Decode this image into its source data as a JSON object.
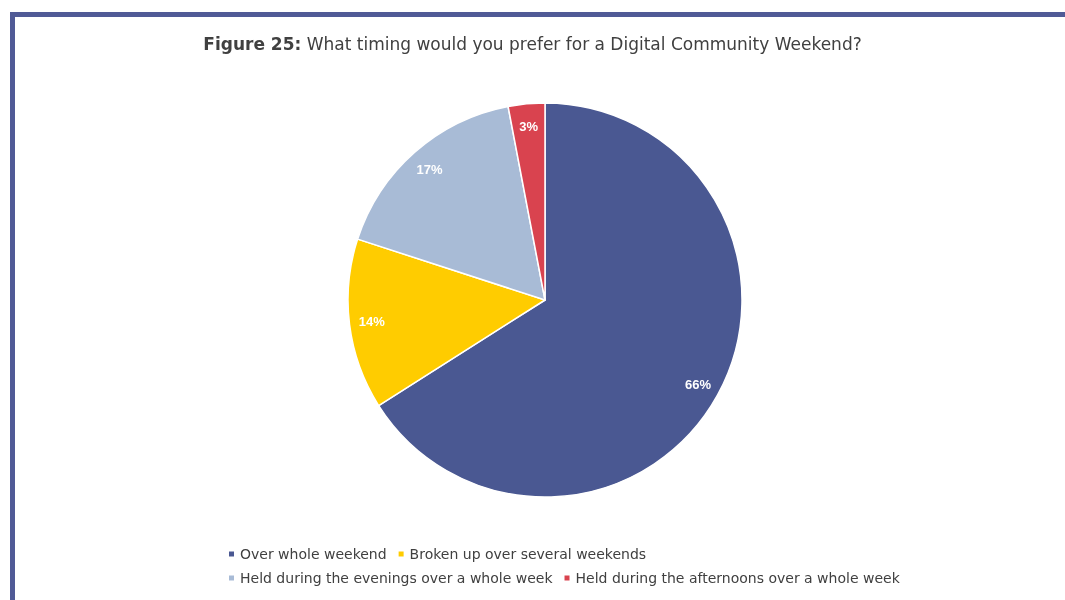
{
  "chart_data": {
    "type": "pie",
    "title": "Figure 25: What timing would you prefer for a Digital Community Weekend?",
    "categories": [
      "Over whole weekend",
      "Broken up over several weekends",
      "Held during the evenings over a whole week",
      "Held during the afternoons over a whole week"
    ],
    "values": [
      66,
      14,
      17,
      3
    ],
    "colors": [
      "#4a5892",
      "#ffcc00",
      "#a8bbd6",
      "#d9434f"
    ],
    "value_labels": [
      "66%",
      "14%",
      "17%",
      "3%"
    ],
    "legend": "bottom"
  }
}
